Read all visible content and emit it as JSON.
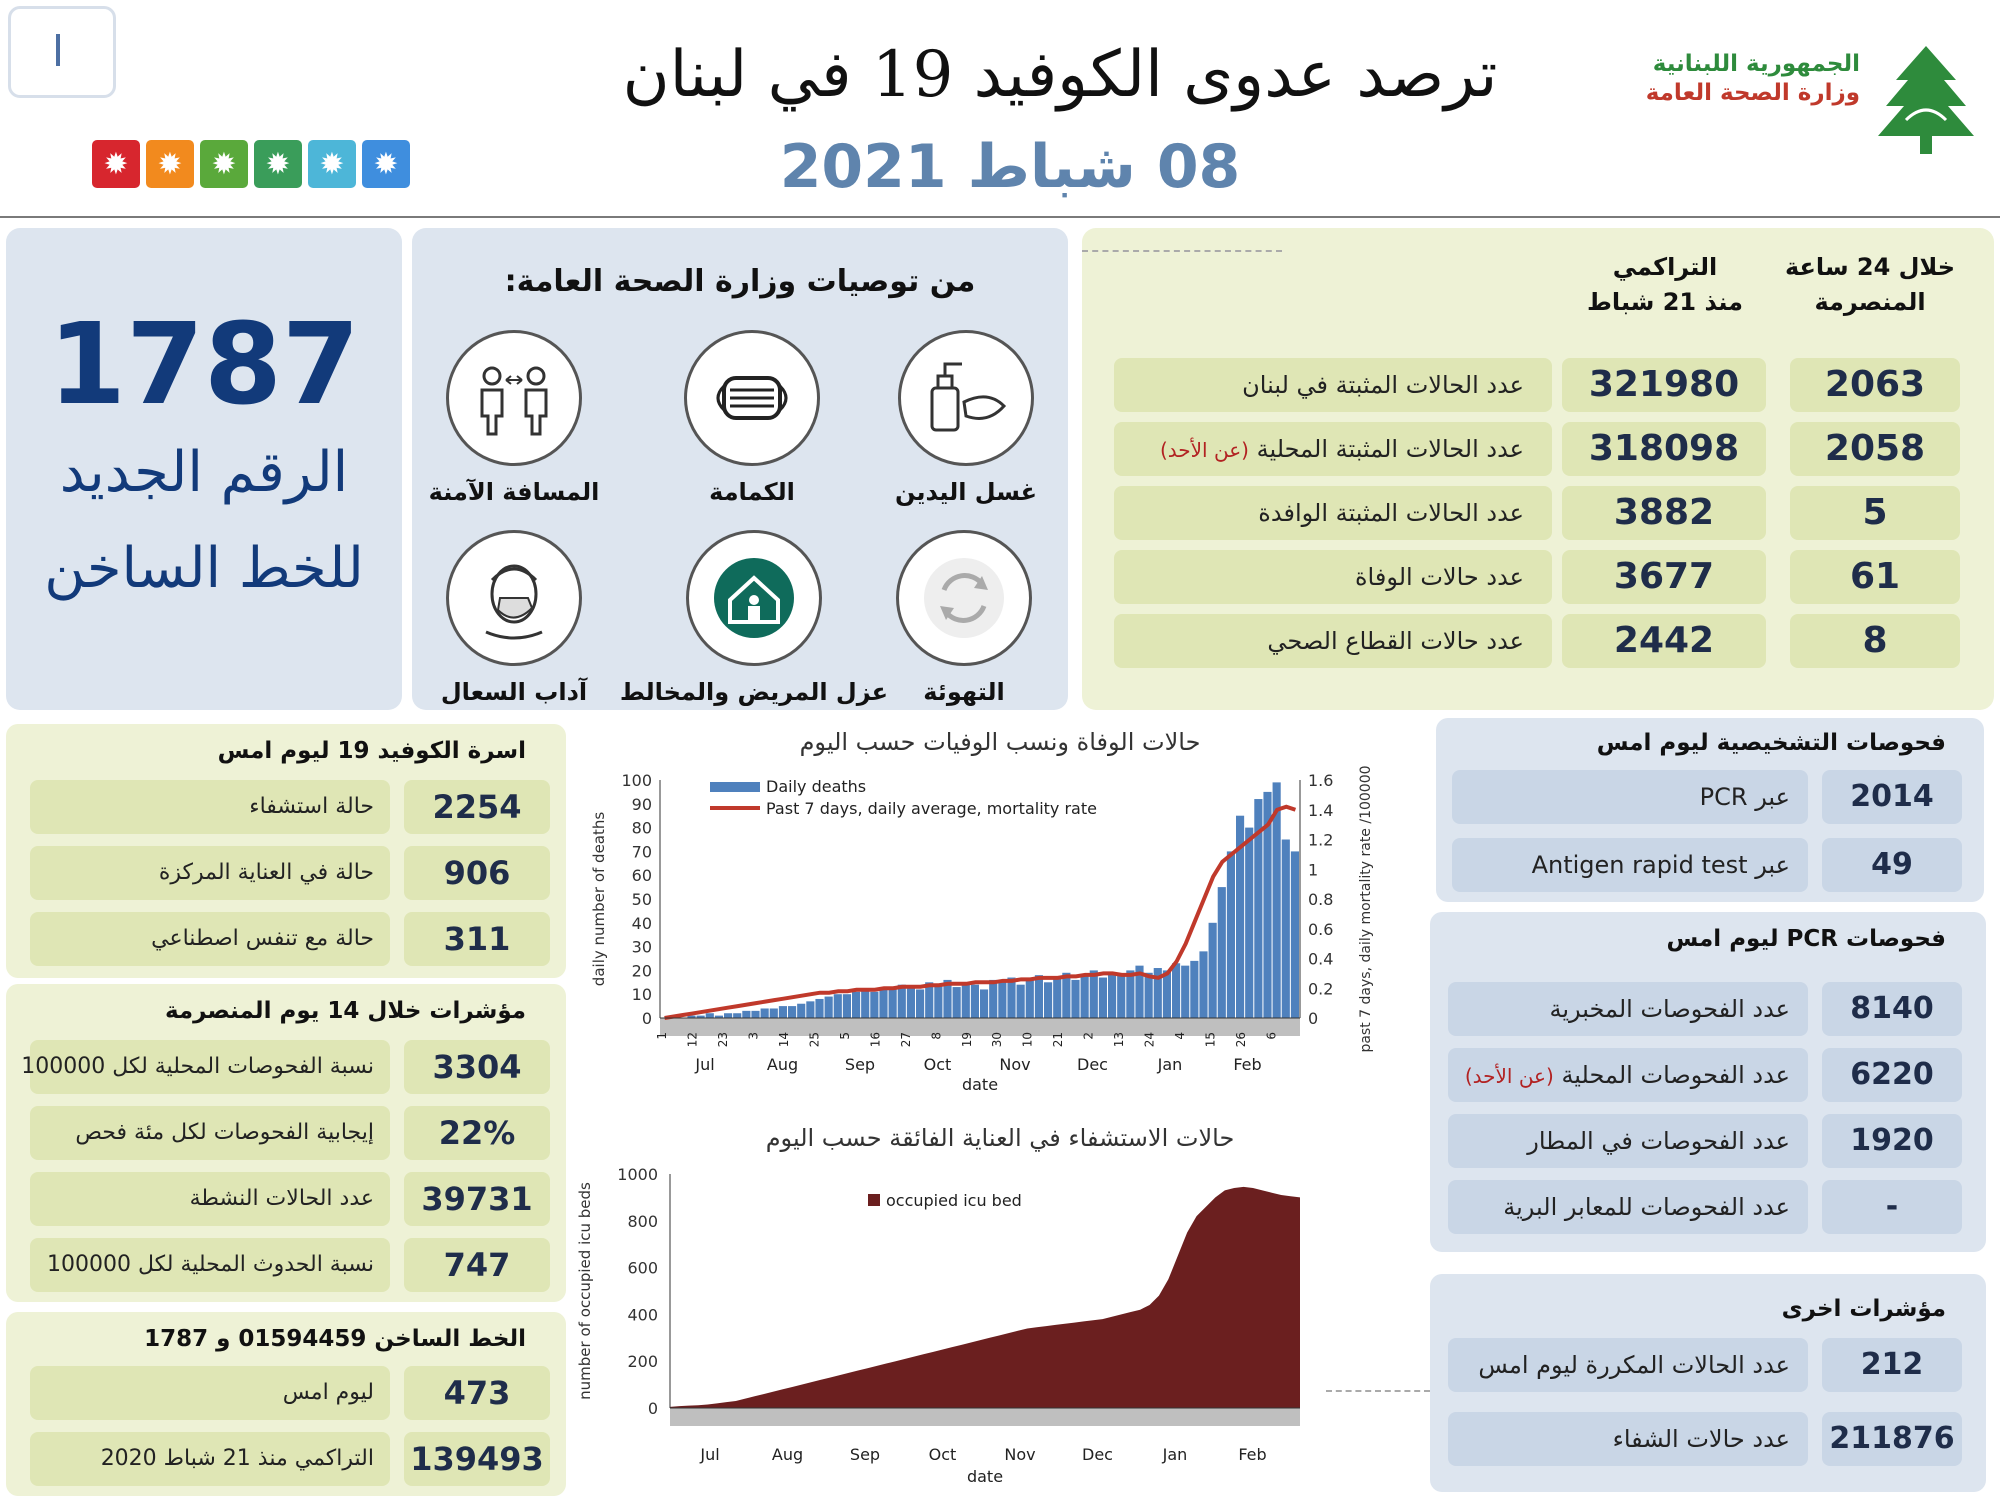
{
  "header": {
    "title": "ترصد عدوى الكوفيد 19 في لبنان",
    "date": "08 شباط 2021",
    "ministry_line1": "الجمهورية اللبنانية",
    "ministry_line2": "وزارة الصحة العامة",
    "corner_mark": "I",
    "tile_colors": [
      "#d7262e",
      "#f28a1e",
      "#5aa93b",
      "#3a9d5a",
      "#4db6d8",
      "#3f8ede"
    ]
  },
  "hotline": {
    "number": "1787",
    "line1": "الرقم الجديد",
    "line2": "للخط الساخن"
  },
  "recommendations": {
    "title": "من توصيات وزارة الصحة العامة:",
    "items": [
      {
        "label": "غسل اليدين",
        "icon": "hand-wash-icon"
      },
      {
        "label": "الكمامة",
        "icon": "mask-icon"
      },
      {
        "label": "المسافة الآمنة",
        "icon": "distance-icon"
      },
      {
        "label": "التهوئة",
        "icon": "ventilation-icon"
      },
      {
        "label": "عزل المريض والمخالط",
        "icon": "isolation-home-icon"
      },
      {
        "label": "آداب السعال",
        "icon": "cough-icon"
      }
    ]
  },
  "stats": {
    "col_24h": "خلال 24 ساعة المنصرمة",
    "col_24h_line1": "خلال 24 ساعة",
    "col_24h_line2": "المنصرمة",
    "col_cum_line1": "التراكمي",
    "col_cum_line2": "منذ 21 شباط",
    "rows": [
      {
        "label": "عدد الحالات المثبتة في لبنان",
        "note": "",
        "cum": "321980",
        "day": "2063"
      },
      {
        "label": "عدد الحالات المثبتة المحلية",
        "note": "(عن الأحد)",
        "cum": "318098",
        "day": "2058"
      },
      {
        "label": "عدد الحالات المثبتة الوافدة",
        "note": "",
        "cum": "3882",
        "day": "5"
      },
      {
        "label": "عدد حالات الوفاة",
        "note": "",
        "cum": "3677",
        "day": "61"
      },
      {
        "label": "عدد حالات القطاع الصحي",
        "note": "",
        "cum": "2442",
        "day": "8"
      }
    ]
  },
  "beds": {
    "title": "اسرة الكوفيد 19 ليوم امس",
    "rows": [
      {
        "value": "2254",
        "label": "حالة استشفاء"
      },
      {
        "value": "906",
        "label": "حالة في العناية المركزة"
      },
      {
        "value": "311",
        "label": "حالة مع تنفس اصطناعي"
      }
    ]
  },
  "indicators14": {
    "title": "مؤشرات خلال 14 يوم المنصرمة",
    "rows": [
      {
        "value": "3304",
        "label": "نسبة الفحوصات المحلية لكل 100000"
      },
      {
        "value": "22%",
        "label": "إيجابية الفحوصات لكل مئة فحص"
      },
      {
        "value": "39731",
        "label": "عدد الحالات النشطة"
      },
      {
        "value": "747",
        "label": "نسبة الحدوث المحلية لكل 100000"
      }
    ]
  },
  "hotline_box": {
    "title": "الخط الساخن 01594459 و 1787",
    "rows": [
      {
        "value": "473",
        "label": "ليوم امس"
      },
      {
        "value": "139493",
        "label": "التراكمي منذ 21 شباط 2020"
      }
    ]
  },
  "diagnostic": {
    "title": "فحوصات التشخيصية ليوم امس",
    "rows": [
      {
        "value": "2014",
        "label": "عبر PCR"
      },
      {
        "value": "49",
        "label": "عبر Antigen rapid test"
      }
    ]
  },
  "pcr": {
    "title": "فحوصات PCR ليوم امس",
    "rows": [
      {
        "value": "8140",
        "label": "عدد الفحوصات المخبرية",
        "note": ""
      },
      {
        "value": "6220",
        "label": "عدد الفحوصات المحلية",
        "note": "(عن الأحد)"
      },
      {
        "value": "1920",
        "label": "عدد الفحوصات في المطار",
        "note": ""
      },
      {
        "value": "-",
        "label": "عدد الفحوصات للمعابر البرية",
        "note": ""
      }
    ]
  },
  "other": {
    "title": "مؤشرات اخرى",
    "rows": [
      {
        "value": "212",
        "label": "عدد الحالات المكررة ليوم امس"
      },
      {
        "value": "211876",
        "label": "عدد حالات الشفاء"
      }
    ]
  },
  "chart_data": [
    {
      "type": "bar",
      "title": "حالات الوفاة ونسب الوفيات حسب اليوم",
      "xlabel": "date",
      "ylabel": "daily number of deaths",
      "y2label": "past 7 days, daily mortality rate /100000",
      "ylim": [
        0,
        100
      ],
      "y2lim": [
        0,
        1.6
      ],
      "yticks": [
        "0",
        "10",
        "20",
        "30",
        "40",
        "50",
        "60",
        "70",
        "80",
        "90",
        "100"
      ],
      "y2ticks": [
        "0",
        "0.2",
        "0.4",
        "0.6",
        "0.8",
        "1",
        "1.2",
        "1.4",
        "1.6"
      ],
      "months": [
        "Jul",
        "Aug",
        "Sep",
        "Oct",
        "Nov",
        "Dec",
        "Jan",
        "Feb"
      ],
      "day_ticks": [
        "1",
        "12",
        "23",
        "3",
        "14",
        "25",
        "5",
        "16",
        "27",
        "8",
        "19",
        "30",
        "10",
        "21",
        "2",
        "13",
        "24",
        "4",
        "15",
        "26",
        "6"
      ],
      "legend": [
        "Daily deaths",
        "Past 7 days, daily average, mortality rate"
      ],
      "series": [
        {
          "name": "Daily deaths",
          "color": "#4f81bd",
          "values": [
            0,
            1,
            0,
            1,
            1,
            2,
            1,
            2,
            2,
            3,
            3,
            4,
            4,
            5,
            5,
            6,
            7,
            8,
            9,
            10,
            10,
            11,
            12,
            11,
            13,
            12,
            14,
            13,
            12,
            15,
            14,
            16,
            13,
            15,
            14,
            12,
            16,
            15,
            17,
            14,
            16,
            18,
            15,
            17,
            19,
            16,
            18,
            20,
            17,
            19,
            18,
            20,
            22,
            19,
            21,
            20,
            23,
            22,
            24,
            28,
            40,
            55,
            70,
            85,
            80,
            92,
            95,
            99,
            75,
            70
          ]
        },
        {
          "name": "Past 7 days, daily average, mortality rate",
          "color": "#c0392b",
          "values": [
            0,
            0.01,
            0.02,
            0.03,
            0.04,
            0.05,
            0.06,
            0.07,
            0.08,
            0.09,
            0.1,
            0.11,
            0.12,
            0.13,
            0.14,
            0.15,
            0.16,
            0.17,
            0.17,
            0.18,
            0.18,
            0.19,
            0.19,
            0.19,
            0.2,
            0.2,
            0.21,
            0.21,
            0.21,
            0.22,
            0.22,
            0.23,
            0.23,
            0.23,
            0.24,
            0.24,
            0.24,
            0.25,
            0.25,
            0.26,
            0.26,
            0.27,
            0.27,
            0.27,
            0.28,
            0.28,
            0.29,
            0.29,
            0.3,
            0.3,
            0.29,
            0.29,
            0.3,
            0.28,
            0.27,
            0.3,
            0.38,
            0.5,
            0.65,
            0.8,
            0.95,
            1.05,
            1.1,
            1.15,
            1.2,
            1.25,
            1.3,
            1.4,
            1.42,
            1.4
          ]
        }
      ]
    },
    {
      "type": "area",
      "title": "حالات الاستشفاء في العناية الفائقة حسب اليوم",
      "xlabel": "date",
      "ylabel": "number of occupied icu beds",
      "ylim": [
        0,
        1000
      ],
      "yticks": [
        "0",
        "200",
        "400",
        "600",
        "800",
        "1000"
      ],
      "months": [
        "Jul",
        "Aug",
        "Sep",
        "Oct",
        "Nov",
        "Dec",
        "Jan",
        "Feb"
      ],
      "legend": [
        "occupied icu bed"
      ],
      "series": [
        {
          "name": "occupied icu bed",
          "color": "#6b1f1f",
          "values": [
            5,
            8,
            10,
            12,
            15,
            20,
            25,
            30,
            40,
            50,
            60,
            70,
            80,
            90,
            100,
            110,
            120,
            130,
            140,
            150,
            160,
            170,
            180,
            190,
            200,
            210,
            220,
            230,
            240,
            250,
            260,
            270,
            280,
            290,
            300,
            310,
            320,
            330,
            340,
            345,
            350,
            355,
            360,
            365,
            370,
            375,
            380,
            390,
            400,
            410,
            420,
            440,
            480,
            550,
            650,
            750,
            820,
            860,
            900,
            930,
            940,
            945,
            940,
            930,
            920,
            910,
            905,
            900
          ]
        }
      ]
    }
  ]
}
